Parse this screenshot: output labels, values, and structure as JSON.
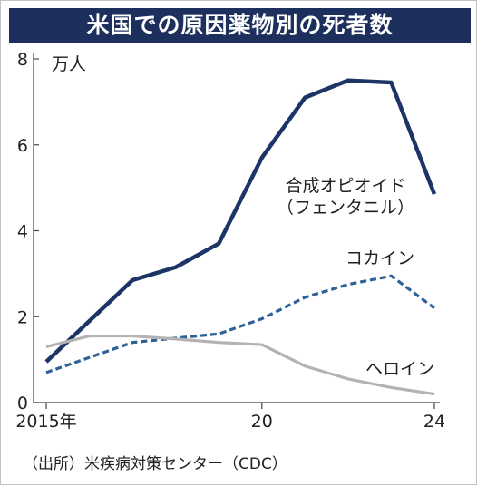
{
  "title": "米国での原因薬物別の死者数",
  "source": "（出所）米疾病対策センター（CDC）",
  "chart_data": {
    "type": "line",
    "title": "米国での原因薬物別の死者数",
    "ylabel": "万人",
    "xlabel": "",
    "x": [
      2015,
      2016,
      2017,
      2018,
      2019,
      2020,
      2021,
      2022,
      2023,
      2024
    ],
    "xticks": [
      {
        "value": 2015,
        "label": "2015年"
      },
      {
        "value": 2020,
        "label": "20"
      },
      {
        "value": 2024,
        "label": "24"
      }
    ],
    "yticks": [
      0,
      2,
      4,
      6,
      8
    ],
    "ylim": [
      0,
      8
    ],
    "xlim": [
      2015,
      2024
    ],
    "grid": false,
    "series": [
      {
        "name": "合成オピオイド（フェンタニル）",
        "label_lines": [
          "合成オピオイド",
          "（フェンタニル）"
        ],
        "color": "#1d3566",
        "style": "solid",
        "values": [
          0.95,
          1.9,
          2.85,
          3.15,
          3.7,
          5.7,
          7.1,
          7.5,
          7.45,
          4.85
        ]
      },
      {
        "name": "コカイン",
        "label_lines": [
          "コカイン"
        ],
        "color": "#2e6196",
        "style": "dashed",
        "values": [
          0.7,
          1.05,
          1.4,
          1.5,
          1.6,
          1.95,
          2.45,
          2.75,
          2.95,
          2.2
        ]
      },
      {
        "name": "ヘロイン",
        "label_lines": [
          "ヘロイン"
        ],
        "color": "#b3b3b3",
        "style": "solid",
        "values": [
          1.3,
          1.55,
          1.55,
          1.48,
          1.4,
          1.35,
          0.85,
          0.55,
          0.35,
          0.2
        ]
      }
    ]
  }
}
